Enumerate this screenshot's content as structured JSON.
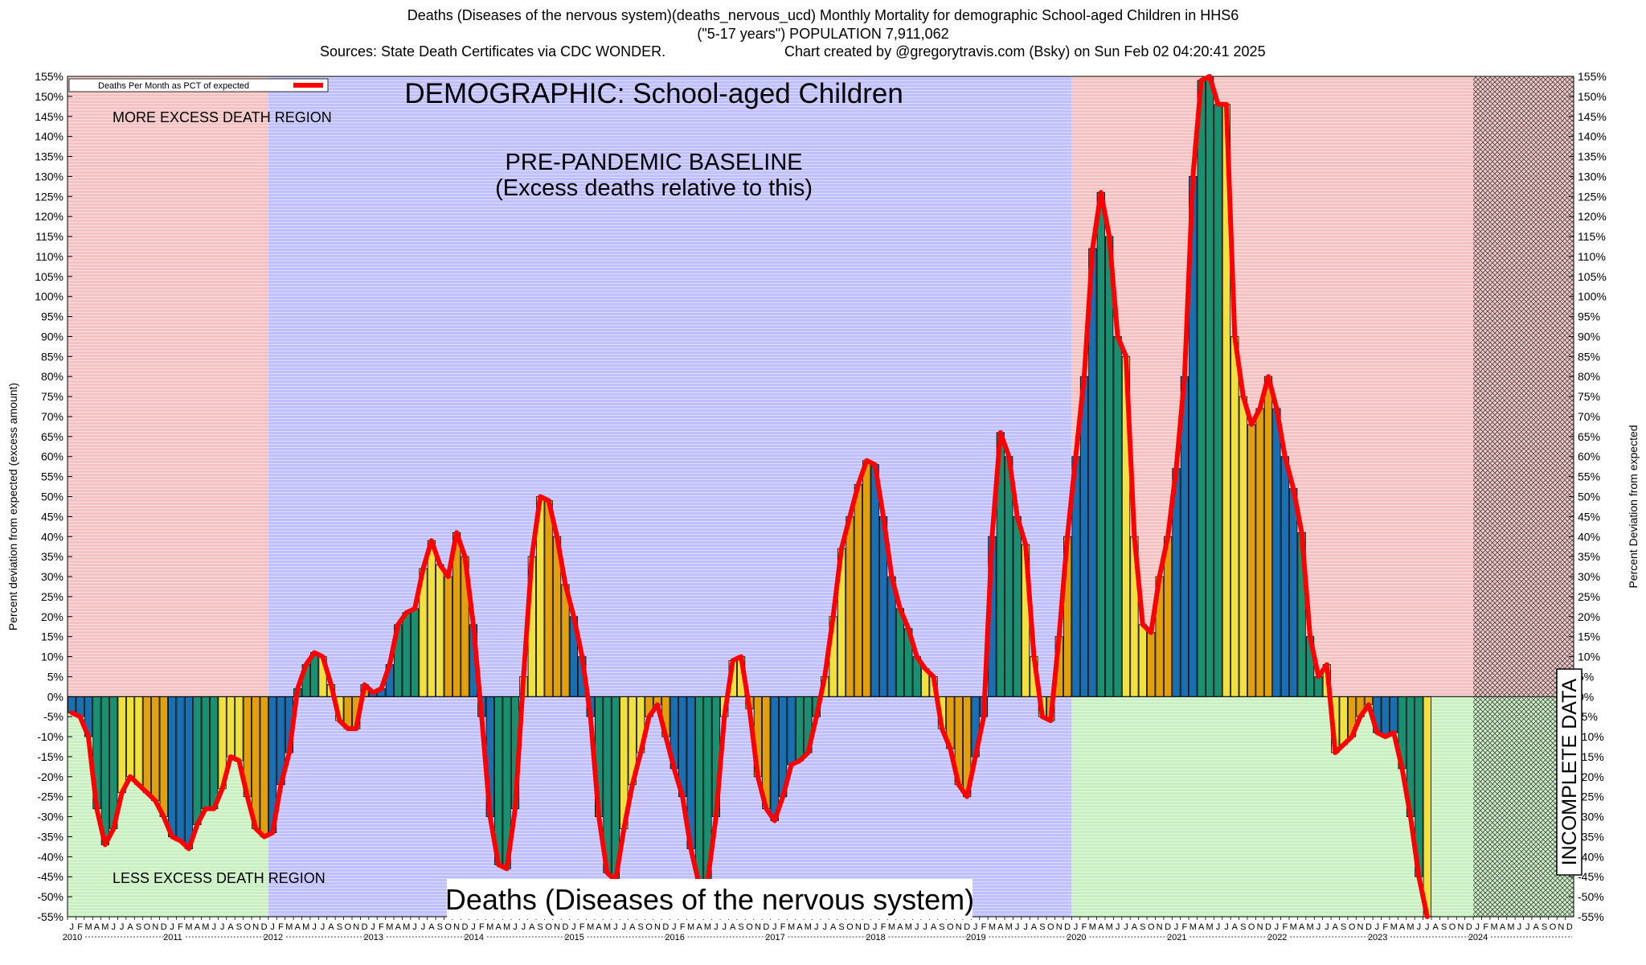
{
  "header": {
    "line1": "Deaths (Diseases of the nervous system)(deaths_nervous_ucd) Monthly Mortality for demographic School-aged Children in HHS6",
    "line2": "(\"5-17 years\") POPULATION 7,911,062",
    "line3_left": "Sources: State Death Certificates via CDC WONDER.",
    "line3_right": "Chart created by @gregorytravis.com (Bsky) on Sun Feb 02 04:20:41 2025"
  },
  "chart_data": {
    "type": "bar",
    "title": "DEMOGRAPHIC: School-aged Children",
    "bottom_title": "Deaths (Diseases of the nervous system)",
    "ylabel_left": "Percent deviation from expected (excess amount)",
    "ylabel_right": "Percent Deviation from expected",
    "ylim": [
      -55,
      155
    ],
    "ytick_step": 5,
    "legend": {
      "label": "Deaths Per Month as PCT of expected",
      "position": "top-left"
    },
    "annotations": {
      "more_excess": "MORE EXCESS DEATH REGION",
      "less_excess": "LESS EXCESS DEATH REGION",
      "baseline_line1": "PRE-PANDEMIC BASELINE",
      "baseline_line2": "(Excess deaths relative to this)",
      "incomplete": "INCOMPLETE DATA"
    },
    "month_letters": [
      "J",
      "F",
      "M",
      "A",
      "M",
      "J",
      "J",
      "A",
      "S",
      "O",
      "N",
      "D"
    ],
    "years": [
      "2010",
      "2011",
      "2012",
      "2013",
      "2014",
      "2015",
      "2016",
      "2017",
      "2018",
      "2019",
      "2020",
      "2021",
      "2022",
      "2023",
      "2024"
    ],
    "regions": {
      "baseline_years": [
        "2012",
        "2019"
      ],
      "incomplete_start": "2024"
    },
    "colors": {
      "red_region": "#f4c2c2",
      "blue_region": "#c0c0ff",
      "green_region": "#c8f0c0",
      "line": "#ff0000",
      "bars": [
        "#1a6fb0",
        "#1a9070",
        "#f0e040",
        "#e0a010"
      ]
    },
    "values": [
      -4,
      -5,
      -10,
      -28,
      -37,
      -33,
      -24,
      -20,
      -22,
      -24,
      -26,
      -30,
      -35,
      -36,
      -38,
      -32,
      -28,
      -28,
      -23,
      -15,
      -16,
      -25,
      -33,
      -35,
      -34,
      -22,
      -14,
      2,
      8,
      11,
      10,
      3,
      -6,
      -8,
      -8,
      3,
      1,
      2,
      8,
      18,
      21,
      22,
      32,
      39,
      33,
      30,
      41,
      35,
      18,
      -5,
      -30,
      -42,
      -43,
      -28,
      5,
      35,
      50,
      49,
      40,
      28,
      20,
      10,
      -5,
      -30,
      -44,
      -46,
      -33,
      -22,
      -14,
      -5,
      -2,
      -10,
      -18,
      -25,
      -38,
      -47,
      -46,
      -30,
      -5,
      9,
      10,
      -3,
      -20,
      -28,
      -31,
      -25,
      -17,
      -16,
      -14,
      -5,
      5,
      20,
      37,
      45,
      53,
      59,
      58,
      45,
      30,
      22,
      17,
      10,
      7,
      5,
      -8,
      -13,
      -22,
      -25,
      -15,
      -5,
      40,
      66,
      60,
      45,
      38,
      10,
      -5,
      -6,
      15,
      40,
      60,
      80,
      112,
      126,
      115,
      90,
      85,
      40,
      18,
      16,
      30,
      40,
      57,
      80,
      130,
      154,
      155,
      148,
      148,
      90,
      75,
      68,
      72,
      80,
      72,
      60,
      52,
      41,
      15,
      5,
      8,
      -14,
      -12,
      -10,
      -5,
      -2,
      -9,
      -10,
      -9,
      -18,
      -30,
      -45,
      -55
    ]
  }
}
